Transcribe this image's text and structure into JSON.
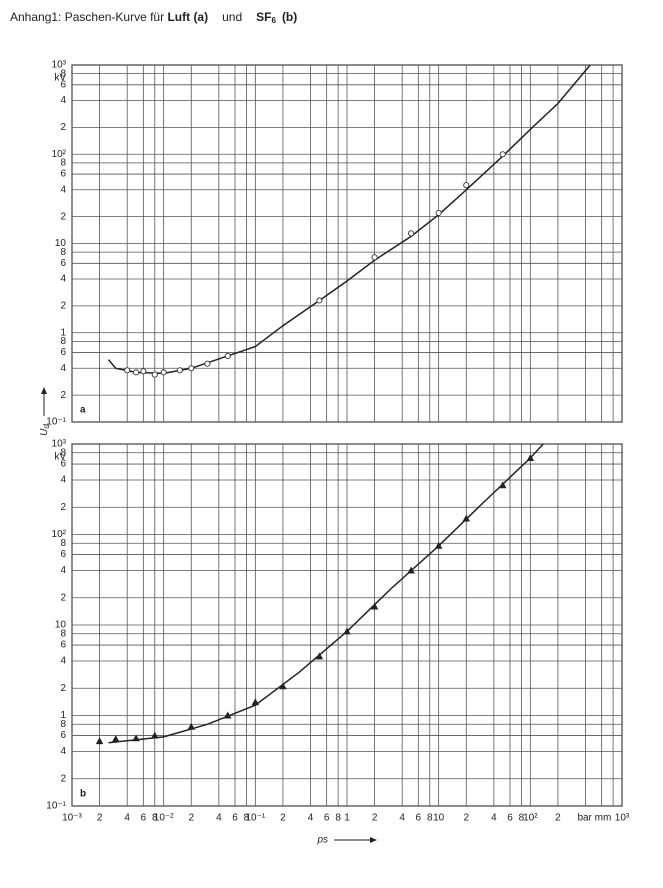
{
  "heading": {
    "prefix": "Anhang1:  Paschen-Kurve für",
    "bold_a": "Luft (a)",
    "und": "und",
    "bold_sf": "SF",
    "sub": "6",
    "bold_b": "(b)"
  },
  "chart_data": [
    {
      "type": "line",
      "panel": "a",
      "yunit": "kV",
      "xscale": "log",
      "yscale": "log",
      "grid": true,
      "xlim": [
        0.001,
        1000
      ],
      "ylim": [
        0.1,
        1000
      ],
      "xgrid": [
        0.001,
        0.002,
        0.004,
        0.006,
        0.008,
        0.01,
        0.02,
        0.04,
        0.06,
        0.08,
        0.1,
        0.2,
        0.4,
        0.6,
        0.8,
        1,
        2,
        4,
        6,
        8,
        10,
        20,
        40,
        60,
        80,
        100,
        200,
        400,
        600,
        800,
        1000
      ],
      "yticks": [
        {
          "value": 0.1,
          "label": "10⁻¹"
        },
        {
          "value": 0.2,
          "label": "2"
        },
        {
          "value": 0.4,
          "label": "4"
        },
        {
          "value": 0.6,
          "label": "6"
        },
        {
          "value": 0.8,
          "label": "8"
        },
        1,
        2,
        4,
        6,
        8,
        10,
        {
          "value": 20,
          "label": "2"
        },
        {
          "value": 40,
          "label": "4"
        },
        {
          "value": 60,
          "label": "6"
        },
        {
          "value": 80,
          "label": "8"
        },
        {
          "value": 100,
          "label": "10²"
        },
        {
          "value": 200,
          "label": "2"
        },
        {
          "value": 400,
          "label": "4"
        },
        {
          "value": 600,
          "label": "6"
        },
        {
          "value": 800,
          "label": "8"
        },
        {
          "value": 1000,
          "label": "10³"
        }
      ],
      "series": [
        {
          "marker": "line",
          "color": "#222",
          "x": [
            0.0025,
            0.003,
            0.005,
            0.01,
            0.02,
            0.05,
            0.1,
            0.2,
            0.5,
            1,
            2,
            5,
            10,
            20,
            50,
            100,
            200,
            450
          ],
          "values": [
            0.5,
            0.4,
            0.36,
            0.35,
            0.4,
            0.55,
            0.7,
            1.2,
            2.3,
            3.8,
            6.5,
            12,
            21,
            40,
            95,
            190,
            370,
            1000
          ]
        },
        {
          "marker": "circle",
          "color": "#333",
          "x": [
            0.004,
            0.005,
            0.006,
            0.008,
            0.01,
            0.015,
            0.02,
            0.03,
            0.05,
            0.5,
            2,
            5,
            10,
            20,
            50
          ],
          "values": [
            0.38,
            0.36,
            0.37,
            0.34,
            0.36,
            0.38,
            0.4,
            0.45,
            0.55,
            2.3,
            7,
            13,
            22,
            45,
            100
          ]
        }
      ]
    },
    {
      "type": "line",
      "panel": "b",
      "yunit": "kV",
      "ylabel": "U",
      "ylabel_sub": "d",
      "xlabel": "ps",
      "xunit": "bar mm",
      "xscale": "log",
      "yscale": "log",
      "grid": true,
      "xlim": [
        0.001,
        1000
      ],
      "ylim": [
        0.1,
        1000
      ],
      "xticks": [
        {
          "value": 0.001,
          "label": "10⁻³"
        },
        {
          "value": 0.002,
          "label": "2"
        },
        {
          "value": 0.004,
          "label": "4"
        },
        {
          "value": 0.006,
          "label": "6"
        },
        {
          "value": 0.008,
          "label": "8"
        },
        {
          "value": 0.01,
          "label": "10⁻²"
        },
        {
          "value": 0.02,
          "label": "2"
        },
        {
          "value": 0.04,
          "label": "4"
        },
        {
          "value": 0.06,
          "label": "6"
        },
        {
          "value": 0.08,
          "label": "8"
        },
        {
          "value": 0.1,
          "label": "10⁻¹"
        },
        {
          "value": 0.2,
          "label": "2"
        },
        {
          "value": 0.4,
          "label": "4"
        },
        {
          "value": 0.6,
          "label": "6"
        },
        {
          "value": 0.8,
          "label": "8"
        },
        1,
        2,
        4,
        6,
        8,
        10,
        {
          "value": 20,
          "label": "2"
        },
        {
          "value": 40,
          "label": "4"
        },
        {
          "value": 60,
          "label": "6"
        },
        {
          "value": 80,
          "label": "8"
        },
        {
          "value": 100,
          "label": "10²"
        },
        {
          "value": 200,
          "label": "2"
        },
        {
          "value": 1000,
          "label": "10³"
        }
      ],
      "xgrid": [
        400,
        600,
        800
      ],
      "yticks": [
        {
          "value": 0.1,
          "label": "10⁻¹"
        },
        {
          "value": 0.2,
          "label": "2"
        },
        {
          "value": 0.4,
          "label": "4"
        },
        {
          "value": 0.6,
          "label": "6"
        },
        {
          "value": 0.8,
          "label": "8"
        },
        1,
        2,
        4,
        6,
        8,
        10,
        {
          "value": 20,
          "label": "2"
        },
        {
          "value": 40,
          "label": "4"
        },
        {
          "value": 60,
          "label": "6"
        },
        {
          "value": 80,
          "label": "8"
        },
        {
          "value": 100,
          "label": "10²"
        },
        {
          "value": 200,
          "label": "2"
        },
        {
          "value": 400,
          "label": "4"
        },
        {
          "value": 600,
          "label": "6"
        },
        {
          "value": 800,
          "label": "8"
        },
        {
          "value": 1000,
          "label": "10³"
        }
      ],
      "series": [
        {
          "marker": "line",
          "color": "#222",
          "x": [
            0.0025,
            0.01,
            0.03,
            0.1,
            0.3,
            1,
            3,
            10,
            30,
            100,
            138
          ],
          "values": [
            0.5,
            0.58,
            0.8,
            1.3,
            3,
            8.5,
            25,
            75,
            220,
            700,
            1000
          ]
        },
        {
          "marker": "triangle",
          "color": "#222",
          "x": [
            0.002,
            0.003,
            0.005,
            0.008,
            0.02,
            0.05,
            0.1,
            0.2,
            0.5,
            1,
            2,
            5,
            10,
            20,
            50,
            100
          ],
          "values": [
            0.52,
            0.55,
            0.56,
            0.6,
            0.75,
            1.0,
            1.4,
            2.1,
            4.5,
            8.5,
            16,
            40,
            75,
            150,
            350,
            700
          ]
        }
      ]
    }
  ]
}
